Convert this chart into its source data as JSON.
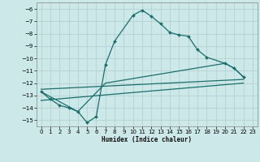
{
  "xlabel": "Humidex (Indice chaleur)",
  "bg_color": "#cde8e8",
  "grid_color": "#b8d4d4",
  "line_color": "#1a6e6e",
  "xlim": [
    -0.5,
    23.5
  ],
  "ylim": [
    -15.5,
    -5.5
  ],
  "yticks": [
    -6,
    -7,
    -8,
    -9,
    -10,
    -11,
    -12,
    -13,
    -14,
    -15
  ],
  "xticks": [
    0,
    1,
    2,
    3,
    4,
    5,
    6,
    7,
    8,
    9,
    10,
    11,
    12,
    13,
    14,
    15,
    16,
    17,
    18,
    19,
    20,
    21,
    22,
    23
  ],
  "main_line": {
    "x": [
      0,
      1,
      2,
      3,
      4,
      5,
      6,
      7,
      8,
      10,
      11,
      12,
      13,
      14,
      15,
      16,
      17,
      18,
      20,
      21,
      22
    ],
    "y": [
      -12.7,
      -13.3,
      -13.8,
      -14.0,
      -14.3,
      -15.2,
      -14.7,
      -10.5,
      -8.6,
      -6.5,
      -6.1,
      -6.6,
      -7.2,
      -7.9,
      -8.1,
      -8.2,
      -9.3,
      -9.9,
      -10.4,
      -10.8,
      -11.5
    ]
  },
  "env_line1": {
    "x": [
      0,
      4,
      7,
      20,
      21,
      22
    ],
    "y": [
      -12.7,
      -14.3,
      -12.0,
      -10.4,
      -10.8,
      -11.5
    ]
  },
  "straight_line1": {
    "x": [
      0,
      22
    ],
    "y": [
      -12.5,
      -11.7
    ]
  },
  "straight_line2": {
    "x": [
      0,
      22
    ],
    "y": [
      -13.4,
      -12.0
    ]
  }
}
